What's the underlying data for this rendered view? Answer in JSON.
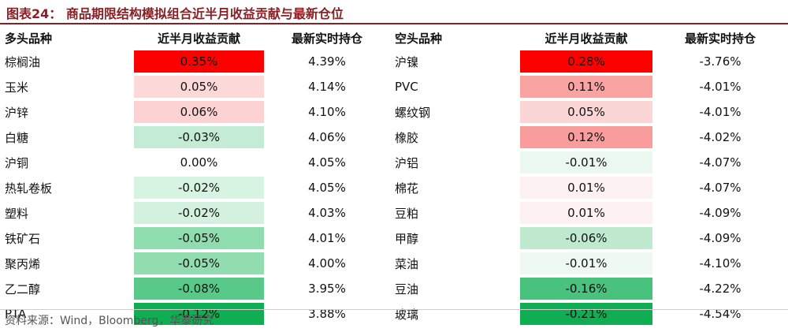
{
  "title": "图表24：  商品期限结构模拟组合近半月收益贡献与最新仓位",
  "headers": {
    "long_name": "多头品种",
    "long_contrib": "近半月收益贡献",
    "long_pos": "最新实时持仓",
    "short_name": "空头品种",
    "short_contrib": "近半月收益贡献",
    "short_pos": "最新实时持仓"
  },
  "rows": [
    {
      "long_name": "棕榈油",
      "long_contrib": "0.35%",
      "long_color": "#ff0000",
      "long_pos": "4.39%",
      "short_name": "沪镍",
      "short_contrib": "0.28%",
      "short_color": "#ff0000",
      "short_pos": "-3.76%"
    },
    {
      "long_name": "玉米",
      "long_contrib": "0.05%",
      "long_color": "#fdd8d8",
      "long_pos": "4.14%",
      "short_name": "PVC",
      "short_contrib": "0.11%",
      "short_color": "#f9a3a3",
      "short_pos": "-4.01%"
    },
    {
      "long_name": "沪锌",
      "long_contrib": "0.06%",
      "long_color": "#fcd2d2",
      "long_pos": "4.10%",
      "short_name": "螺纹钢",
      "short_contrib": "0.05%",
      "short_color": "#fcd6d6",
      "short_pos": "-4.01%"
    },
    {
      "long_name": "白糖",
      "long_contrib": "-0.03%",
      "long_color": "#c4ecd4",
      "long_pos": "4.06%",
      "short_name": "橡胶",
      "short_contrib": "0.12%",
      "short_color": "#f99c9c",
      "short_pos": "-4.02%"
    },
    {
      "long_name": "沪铜",
      "long_contrib": "0.00%",
      "long_color": "#ffffff",
      "long_pos": "4.05%",
      "short_name": "沪铝",
      "short_contrib": "-0.01%",
      "short_color": "#eaf8ef",
      "short_pos": "-4.07%"
    },
    {
      "long_name": "热轧卷板",
      "long_contrib": "-0.02%",
      "long_color": "#d7f3e1",
      "long_pos": "4.05%",
      "short_name": "棉花",
      "short_contrib": "0.01%",
      "short_color": "#fef1f1",
      "short_pos": "-4.07%"
    },
    {
      "long_name": "塑料",
      "long_contrib": "-0.02%",
      "long_color": "#d3f1de",
      "long_pos": "4.03%",
      "short_name": "豆粕",
      "short_contrib": "0.01%",
      "short_color": "#fef1f1",
      "short_pos": "-4.09%"
    },
    {
      "long_name": "铁矿石",
      "long_contrib": "-0.05%",
      "long_color": "#8fdcae",
      "long_pos": "4.01%",
      "short_name": "甲醇",
      "short_contrib": "-0.06%",
      "short_color": "#bfeacf",
      "short_pos": "-4.09%"
    },
    {
      "long_name": "聚丙烯",
      "long_contrib": "-0.05%",
      "long_color": "#91ddb0",
      "long_pos": "4.00%",
      "short_name": "菜油",
      "short_contrib": "-0.01%",
      "short_color": "#eef9f2",
      "short_pos": "-4.10%"
    },
    {
      "long_name": "乙二醇",
      "long_contrib": "-0.08%",
      "long_color": "#58c988",
      "long_pos": "3.95%",
      "short_name": "豆油",
      "short_contrib": "-0.16%",
      "short_color": "#48c27c",
      "short_pos": "-4.22%"
    },
    {
      "long_name": "PTA",
      "long_contrib": "-0.12%",
      "long_color": "#0fae52",
      "long_pos": "3.88%",
      "short_name": "玻璃",
      "short_contrib": "-0.21%",
      "short_color": "#0fae52",
      "short_pos": "-4.54%"
    }
  ],
  "source": "资料来源：Wind，Bloomberg，华泰研究"
}
